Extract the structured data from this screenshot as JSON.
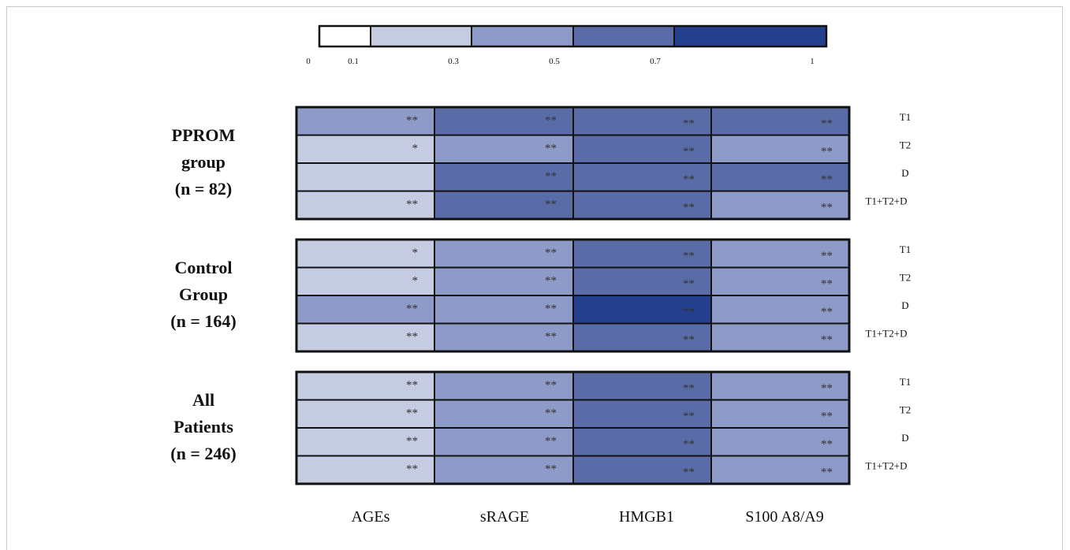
{
  "chart_data": {
    "type": "heatmap",
    "colorbar": {
      "tick_labels": [
        "0",
        "0.1",
        "0.3",
        "0.5",
        "0.7",
        "1"
      ],
      "bins": [
        {
          "min": 0,
          "max": 0.1,
          "color": "#ffffff"
        },
        {
          "min": 0.1,
          "max": 0.3,
          "color": "#c5cbe0"
        },
        {
          "min": 0.3,
          "max": 0.5,
          "color": "#8e9ac7"
        },
        {
          "min": 0.5,
          "max": 0.7,
          "color": "#5a6ca8"
        },
        {
          "min": 0.7,
          "max": 1,
          "color": "#243f8e"
        }
      ]
    },
    "columns": [
      "AGEs",
      "sRAGE",
      "HMGB1",
      "S100 A8/A9"
    ],
    "rows": [
      "T1",
      "T2",
      "D",
      "T1+T2+D"
    ],
    "groups": [
      {
        "label_lines": [
          "PPROM",
          "group",
          "(n = 82)"
        ],
        "bins": [
          [
            2,
            3,
            3,
            3
          ],
          [
            1,
            2,
            3,
            2
          ],
          [
            1,
            3,
            3,
            3
          ],
          [
            1,
            3,
            3,
            2
          ]
        ],
        "significance": [
          [
            "**",
            "**",
            "**",
            "**"
          ],
          [
            "*",
            "**",
            "**",
            "**"
          ],
          [
            "",
            "**",
            "**",
            "**"
          ],
          [
            "**",
            "**",
            "**",
            "**"
          ]
        ]
      },
      {
        "label_lines": [
          "Control",
          "Group",
          "(n = 164)"
        ],
        "bins": [
          [
            1,
            2,
            3,
            2
          ],
          [
            1,
            2,
            3,
            2
          ],
          [
            2,
            2,
            4,
            2
          ],
          [
            1,
            2,
            3,
            2
          ]
        ],
        "significance": [
          [
            "*",
            "**",
            "**",
            "**"
          ],
          [
            "*",
            "**",
            "**",
            "**"
          ],
          [
            "**",
            "**",
            "**",
            "**"
          ],
          [
            "**",
            "**",
            "**",
            "**"
          ]
        ]
      },
      {
        "label_lines": [
          "All",
          "Patients",
          "(n = 246)"
        ],
        "bins": [
          [
            1,
            2,
            3,
            2
          ],
          [
            1,
            2,
            3,
            2
          ],
          [
            1,
            2,
            3,
            2
          ],
          [
            1,
            2,
            3,
            2
          ]
        ],
        "significance": [
          [
            "**",
            "**",
            "**",
            "**"
          ],
          [
            "**",
            "**",
            "**",
            "**"
          ],
          [
            "**",
            "**",
            "**",
            "**"
          ],
          [
            "**",
            "**",
            "**",
            "**"
          ]
        ]
      }
    ]
  }
}
